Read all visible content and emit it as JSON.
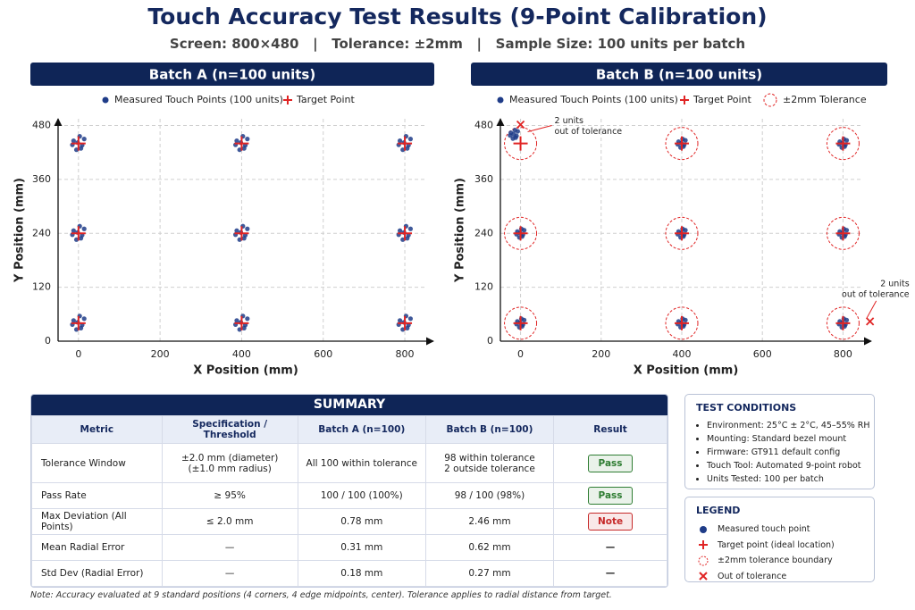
{
  "title": "Touch Accuracy Test Results (9-Point Calibration)",
  "subtitle": "Screen: 800×480   |   Tolerance: ±2mm   |   Sample Size: 100 units per batch",
  "chart_data": [
    {
      "type": "scatter",
      "title": "Batch A (n=100 units)",
      "x_label": "X Position (mm)",
      "y_label": "Y Position (mm)",
      "xlim": [
        -50,
        870
      ],
      "ylim": [
        0,
        495
      ],
      "xticks": [
        0,
        200,
        400,
        600,
        800
      ],
      "yticks": [
        0,
        120,
        240,
        360,
        480
      ],
      "grid": true,
      "series": [
        {
          "name": "Measured Touch Points (100 units)",
          "color": "#1f3c88",
          "marker": "dot",
          "x": [
            -12,
            9,
            -5,
            14,
            3,
            -15,
            6,
            -2,
            388,
            409,
            395,
            414,
            403,
            385,
            406,
            398,
            788,
            809,
            795,
            814,
            803,
            785,
            806,
            798,
            -12,
            9,
            -5,
            14,
            3,
            -15,
            6,
            -2,
            388,
            409,
            395,
            414,
            403,
            385,
            406,
            398,
            788,
            809,
            795,
            814,
            803,
            785,
            806,
            798,
            -12,
            9,
            -5,
            14,
            3,
            -15,
            6,
            -2,
            388,
            409,
            395,
            414,
            403,
            385,
            406,
            398,
            788,
            809,
            795,
            814,
            803,
            785,
            806,
            798
          ],
          "y": [
            446,
            436,
            426,
            450,
            456,
            437,
            429,
            442,
            446,
            436,
            426,
            450,
            456,
            437,
            429,
            442,
            446,
            436,
            426,
            450,
            456,
            437,
            429,
            442,
            246,
            236,
            226,
            250,
            256,
            237,
            229,
            242,
            246,
            236,
            226,
            250,
            256,
            237,
            229,
            242,
            246,
            236,
            226,
            250,
            256,
            237,
            229,
            242,
            46,
            36,
            26,
            50,
            56,
            37,
            29,
            42,
            46,
            36,
            26,
            50,
            56,
            37,
            29,
            42,
            46,
            36,
            26,
            50,
            56,
            37,
            29,
            42
          ]
        },
        {
          "name": "Target Point",
          "color": "#e02424",
          "marker": "plus",
          "x": [
            0,
            400,
            800,
            0,
            400,
            800,
            0,
            400,
            800
          ],
          "y": [
            440,
            440,
            440,
            240,
            240,
            240,
            40,
            40,
            40
          ]
        }
      ]
    },
    {
      "type": "scatter",
      "title": "Batch B (n=100 units)",
      "x_label": "X Position (mm)",
      "y_label": "Y Position (mm)",
      "xlim": [
        -50,
        870
      ],
      "ylim": [
        0,
        495
      ],
      "xticks": [
        0,
        200,
        400,
        600,
        800
      ],
      "yticks": [
        0,
        120,
        240,
        360,
        480
      ],
      "grid": true,
      "series": [
        {
          "name": "Measured Touch Points (100 units)",
          "color": "#1f3c88",
          "marker": "dot",
          "x": [
            -24,
            -10,
            -19,
            -7,
            -14,
            -26,
            -12,
            -17,
            392,
            406,
            397,
            409,
            402,
            390,
            404,
            399,
            792,
            806,
            797,
            809,
            802,
            790,
            804,
            799,
            -8,
            6,
            -3,
            9,
            2,
            -10,
            4,
            -1,
            392,
            406,
            397,
            409,
            402,
            390,
            404,
            399,
            792,
            806,
            797,
            809,
            802,
            790,
            804,
            799,
            -8,
            6,
            -3,
            9,
            2,
            -10,
            4,
            -1,
            392,
            406,
            397,
            409,
            402,
            390,
            404,
            399,
            792,
            806,
            797,
            809,
            802,
            790,
            804,
            799
          ],
          "y": [
            464,
            457,
            451,
            467,
            470,
            458,
            453,
            461,
            444,
            437,
            431,
            447,
            450,
            438,
            433,
            441,
            444,
            437,
            431,
            447,
            450,
            438,
            433,
            441,
            244,
            237,
            231,
            247,
            250,
            238,
            233,
            241,
            244,
            237,
            231,
            247,
            250,
            238,
            233,
            241,
            244,
            237,
            231,
            247,
            250,
            238,
            233,
            241,
            44,
            37,
            31,
            47,
            50,
            38,
            33,
            41,
            44,
            37,
            31,
            47,
            50,
            38,
            33,
            41,
            44,
            37,
            31,
            47,
            50,
            38,
            33,
            41
          ]
        },
        {
          "name": "Target Point",
          "color": "#e02424",
          "marker": "plus",
          "x": [
            0,
            400,
            800,
            0,
            400,
            800,
            0,
            400,
            800
          ],
          "y": [
            440,
            440,
            440,
            240,
            240,
            240,
            40,
            40,
            40
          ]
        }
      ],
      "tolerance": {
        "name": "±2mm Tolerance",
        "color": "#e02424"
      },
      "outliers": {
        "color": "#e02424",
        "x": [
          0,
          867
        ],
        "y": [
          482,
          44
        ]
      },
      "annotations": [
        [
          "2 units",
          "out of tolerance"
        ],
        [
          "2 units",
          "out of tolerance"
        ]
      ]
    }
  ],
  "summary": {
    "title": "SUMMARY",
    "header": [
      "Metric",
      "Specification / Threshold",
      "Batch A (n=100)",
      "Batch B (n=100)",
      "Result"
    ],
    "rows": [
      {
        "cells": [
          "Tolerance Window",
          "±2.0 mm (diameter)\n(±1.0 mm radius)",
          "All 100 within tolerance",
          "98 within tolerance\n2 outside tolerance"
        ],
        "result": {
          "text": "Pass",
          "color": "#2e7d32"
        }
      },
      {
        "cells": [
          "Pass Rate",
          "≥ 95%",
          "100 / 100 (100%)",
          "98 / 100 (98%)"
        ],
        "result": {
          "text": "Pass",
          "color": "#2e7d32"
        }
      },
      {
        "cells": [
          "Max Deviation (All Points)",
          "≤ 2.0 mm",
          "0.78 mm",
          "2.46 mm"
        ],
        "result": {
          "text": "Note",
          "color": "#c62828"
        }
      },
      {
        "cells": [
          "Mean Radial Error",
          "—",
          "0.31 mm",
          "0.62 mm"
        ],
        "result": {
          "text": "—"
        }
      },
      {
        "cells": [
          "Std Dev (Radial Error)",
          "—",
          "0.18 mm",
          "0.27 mm"
        ],
        "result": {
          "text": "—"
        }
      }
    ]
  },
  "test_conditions": {
    "title": "TEST CONDITIONS",
    "items": [
      "Environment: 25°C ± 2°C, 45–55% RH",
      "Mounting: Standard bezel mount",
      "Firmware: GT911 default config",
      "Touch Tool: Automated 9-point robot",
      "Units Tested: 100 per batch"
    ]
  },
  "legend": {
    "title": "LEGEND",
    "items": [
      "Measured touch point",
      "Target point (ideal location)",
      "±2mm tolerance boundary",
      "Out of tolerance"
    ]
  },
  "note": "Note: Accuracy evaluated at 9 standard positions (4 corners, 4 edge midpoints, center). Tolerance applies to radial distance from target."
}
